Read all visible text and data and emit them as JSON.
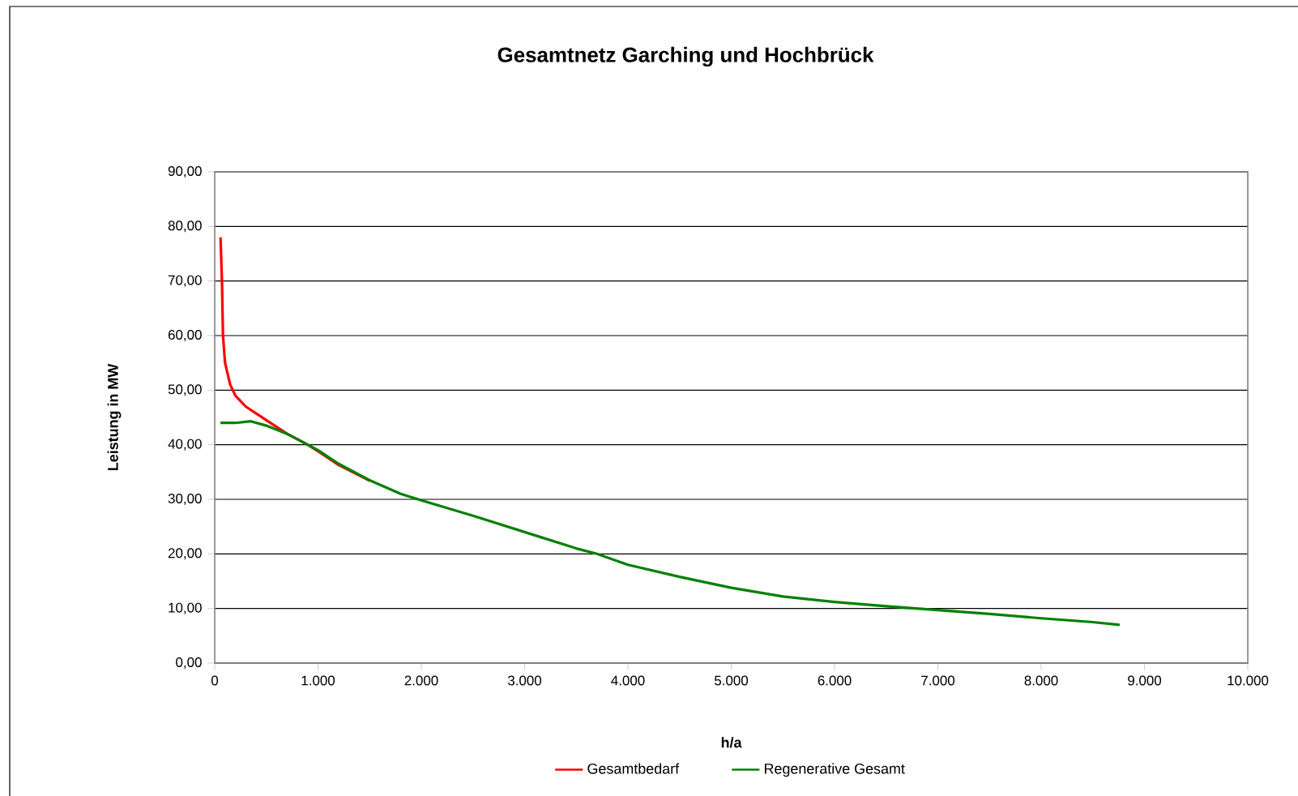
{
  "chart_data": {
    "type": "line",
    "title": "Gesamtnetz Garching und Hochbrück",
    "xlabel": "h/a",
    "ylabel": "Leistung in MW",
    "xlim": [
      0,
      10000
    ],
    "xticks": [
      0,
      {
        "value": 1000,
        "label": "1.000"
      },
      {
        "value": 2000,
        "label": "2.000"
      },
      {
        "value": 3000,
        "label": "3.000"
      },
      {
        "value": 4000,
        "label": "4.000"
      },
      {
        "value": 5000,
        "label": "5.000"
      },
      {
        "value": 6000,
        "label": "6.000"
      },
      {
        "value": 7000,
        "label": "7.000"
      },
      {
        "value": 8000,
        "label": "8.000"
      },
      {
        "value": 9000,
        "label": "9.000"
      },
      {
        "value": 10000,
        "label": "10.000"
      }
    ],
    "ylim": [
      0,
      90
    ],
    "yticks": [
      {
        "value": 0,
        "label": "0,00"
      },
      {
        "value": 10,
        "label": "10,00"
      },
      {
        "value": 20,
        "label": "20,00"
      },
      {
        "value": 30,
        "label": "30,00"
      },
      {
        "value": 40,
        "label": "40,00"
      },
      {
        "value": 50,
        "label": "50,00"
      },
      {
        "value": 60,
        "label": "60,00"
      },
      {
        "value": 70,
        "label": "70,00"
      },
      {
        "value": 80,
        "label": "80,00"
      },
      {
        "value": 90,
        "label": "90,00"
      }
    ],
    "grid": "y",
    "legend": "bottom",
    "marker": "none",
    "line_style": "solid",
    "series": [
      {
        "name": "Gesamtbedarf",
        "color": "#ff0000",
        "x": [
          56,
          70,
          80,
          100,
          150,
          200,
          300,
          500,
          700,
          900,
          1000,
          1200,
          1500
        ],
        "values": [
          78,
          70,
          60,
          55,
          51,
          49,
          47,
          44.5,
          42,
          40,
          38.8,
          36.3,
          33.4
        ]
      },
      {
        "name": "Regenerative Gesamt",
        "color": "#008000",
        "x": [
          56,
          200,
          350,
          500,
          700,
          900,
          1000,
          1200,
          1500,
          1800,
          2000,
          2500,
          3000,
          3500,
          3700,
          4000,
          4500,
          5000,
          5500,
          6000,
          6500,
          7000,
          7500,
          8000,
          8500,
          8760
        ],
        "values": [
          44,
          44,
          44.3,
          43.5,
          42,
          40,
          39,
          36.5,
          33.5,
          31,
          29.8,
          27,
          24,
          21,
          20,
          18,
          15.8,
          13.8,
          12.2,
          11.2,
          10.4,
          9.7,
          9,
          8.2,
          7.5,
          7
        ]
      }
    ]
  }
}
